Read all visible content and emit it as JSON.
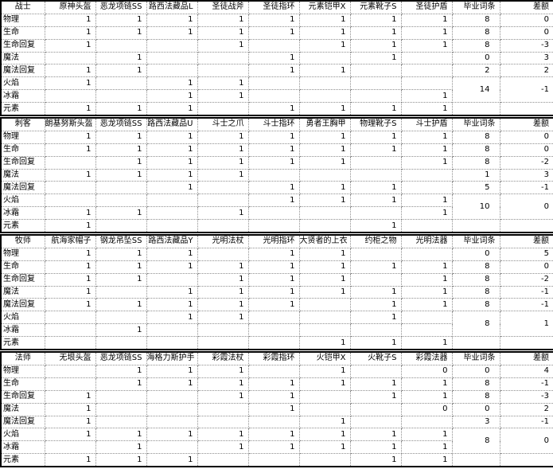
{
  "colors": {
    "background": "#ffffff",
    "text": "#000000",
    "grid_line": "#8f8f8f",
    "section_border": "#000000"
  },
  "sections": [
    {
      "key": "warrior",
      "title": "战士",
      "columns": [
        "原神头盔",
        "恶龙项链SS",
        "路西法藏品L",
        "圣徒战斧",
        "圣徒指环",
        "元素铠甲X",
        "元素靴子S",
        "圣徒护盾",
        "毕业词条",
        "差额"
      ],
      "rows": [
        {
          "label": "物理",
          "cells": [
            "1",
            "1",
            "1",
            "1",
            "1",
            "1",
            "1",
            "1",
            "8",
            "0"
          ]
        },
        {
          "label": "生命",
          "cells": [
            "1",
            "1",
            "1",
            "1",
            "1",
            "1",
            "1",
            "1",
            "8",
            "0"
          ]
        },
        {
          "label": "生命回复",
          "cells": [
            "1",
            "",
            "",
            "1",
            "",
            "1",
            "1",
            "1",
            "8",
            "-3"
          ]
        },
        {
          "label": "魔法",
          "cells": [
            "",
            "1",
            "",
            "",
            "1",
            "",
            "1",
            "",
            "0",
            "3"
          ]
        },
        {
          "label": "魔法回复",
          "cells": [
            "1",
            "1",
            "",
            "",
            "1",
            "1",
            "",
            "",
            "2",
            "2"
          ]
        },
        {
          "label": "火焰",
          "cells": [
            "1",
            "",
            "1",
            "1",
            "",
            "",
            "",
            ""
          ]
        },
        {
          "label": "冰霜",
          "cells": [
            "",
            "",
            "1",
            "1",
            "",
            "",
            "",
            "1"
          ]
        },
        {
          "label": "元素",
          "cells": [
            "1",
            "1",
            "1",
            "",
            "1",
            "1",
            "1",
            "1",
            "",
            ""
          ]
        }
      ],
      "merged_grad": "14",
      "merged_diff": "-1"
    },
    {
      "key": "assassin",
      "title": "刺客",
      "columns": [
        "朗基努斯头盔",
        "恶龙项链SS",
        "路西法藏品U",
        "斗士之爪",
        "斗士指环",
        "勇者王胸甲",
        "物理靴子S",
        "斗士护盾",
        "毕业词条",
        "差额"
      ],
      "rows": [
        {
          "label": "物理",
          "cells": [
            "1",
            "1",
            "1",
            "1",
            "1",
            "1",
            "1",
            "1",
            "8",
            "0"
          ]
        },
        {
          "label": "生命",
          "cells": [
            "1",
            "1",
            "1",
            "1",
            "1",
            "1",
            "1",
            "1",
            "8",
            "0"
          ]
        },
        {
          "label": "生命回复",
          "cells": [
            "",
            "1",
            "1",
            "1",
            "1",
            "1",
            "",
            "1",
            "8",
            "-2"
          ]
        },
        {
          "label": "魔法",
          "cells": [
            "1",
            "1",
            "1",
            "1",
            "",
            "",
            "",
            "",
            "1",
            "3"
          ]
        },
        {
          "label": "魔法回复",
          "cells": [
            "",
            "",
            "1",
            "",
            "1",
            "1",
            "1",
            "",
            "5",
            "-1"
          ]
        },
        {
          "label": "火焰",
          "cells": [
            "",
            "",
            "",
            "",
            "1",
            "1",
            "1",
            "1"
          ]
        },
        {
          "label": "冰霜",
          "cells": [
            "1",
            "1",
            "",
            "1",
            "",
            "",
            "",
            "1"
          ]
        },
        {
          "label": "元素",
          "cells": [
            "1",
            "",
            "",
            "",
            "",
            "",
            "1",
            "",
            "",
            ""
          ]
        }
      ],
      "merged_grad": "10",
      "merged_diff": "0"
    },
    {
      "key": "priest",
      "title": "牧师",
      "columns": [
        "航海家帽子",
        "钢龙吊坠SS",
        "路西法藏品Y",
        "光明法杖",
        "光明指环",
        "大贤者的上衣",
        "约柜之物",
        "光明法器",
        "毕业词条",
        "差额"
      ],
      "rows": [
        {
          "label": "物理",
          "cells": [
            "1",
            "1",
            "1",
            "",
            "1",
            "1",
            "",
            "",
            "0",
            "5"
          ]
        },
        {
          "label": "生命",
          "cells": [
            "1",
            "1",
            "1",
            "1",
            "1",
            "1",
            "1",
            "1",
            "8",
            "0"
          ]
        },
        {
          "label": "生命回复",
          "cells": [
            "1",
            "1",
            "",
            "1",
            "1",
            "1",
            "",
            "1",
            "8",
            "-2"
          ]
        },
        {
          "label": "魔法",
          "cells": [
            "1",
            "",
            "1",
            "1",
            "1",
            "1",
            "1",
            "1",
            "8",
            "-1"
          ]
        },
        {
          "label": "魔法回复",
          "cells": [
            "1",
            "1",
            "1",
            "1",
            "1",
            "",
            "1",
            "1",
            "8",
            "-1"
          ]
        },
        {
          "label": "火焰",
          "cells": [
            "",
            "",
            "1",
            "1",
            "",
            "",
            "1",
            ""
          ]
        },
        {
          "label": "冰霜",
          "cells": [
            "",
            "1",
            "",
            "",
            "",
            "",
            "",
            ""
          ]
        },
        {
          "label": "元素",
          "cells": [
            "",
            "",
            "",
            "",
            "",
            "1",
            "1",
            "1",
            "",
            ""
          ]
        }
      ],
      "merged_grad": "8",
      "merged_diff": "1"
    },
    {
      "key": "mage",
      "title": "法师",
      "columns": [
        "无垠头盔",
        "恶龙项链SS",
        "海格力斯护手",
        "彩霞法杖",
        "彩霞指环",
        "火铠甲X",
        "火靴子S",
        "彩霞法器",
        "毕业词条",
        "差额"
      ],
      "rows": [
        {
          "label": "物理",
          "cells": [
            "",
            "1",
            "1",
            "1",
            "",
            "1",
            "",
            "0",
            "0",
            "4"
          ]
        },
        {
          "label": "生命",
          "cells": [
            "",
            "1",
            "1",
            "1",
            "1",
            "1",
            "1",
            "1",
            "8",
            "-1"
          ]
        },
        {
          "label": "生命回复",
          "cells": [
            "1",
            "",
            "",
            "1",
            "1",
            "",
            "1",
            "1",
            "8",
            "-3"
          ]
        },
        {
          "label": "魔法",
          "cells": [
            "1",
            "",
            "",
            "",
            "1",
            "",
            "",
            "0",
            "0",
            "2"
          ]
        },
        {
          "label": "魔法回复",
          "cells": [
            "1",
            "",
            "",
            "",
            "",
            "1",
            "",
            "",
            "3",
            "-1"
          ]
        },
        {
          "label": "火焰",
          "cells": [
            "1",
            "1",
            "1",
            "1",
            "1",
            "1",
            "1",
            "1"
          ]
        },
        {
          "label": "冰霜",
          "cells": [
            "",
            "1",
            "",
            "1",
            "1",
            "1",
            "1",
            "1"
          ]
        },
        {
          "label": "元素",
          "cells": [
            "1",
            "1",
            "1",
            "",
            "",
            "",
            "1",
            "1",
            "",
            ""
          ]
        }
      ],
      "merged_grad": "8",
      "merged_diff": "0"
    }
  ]
}
